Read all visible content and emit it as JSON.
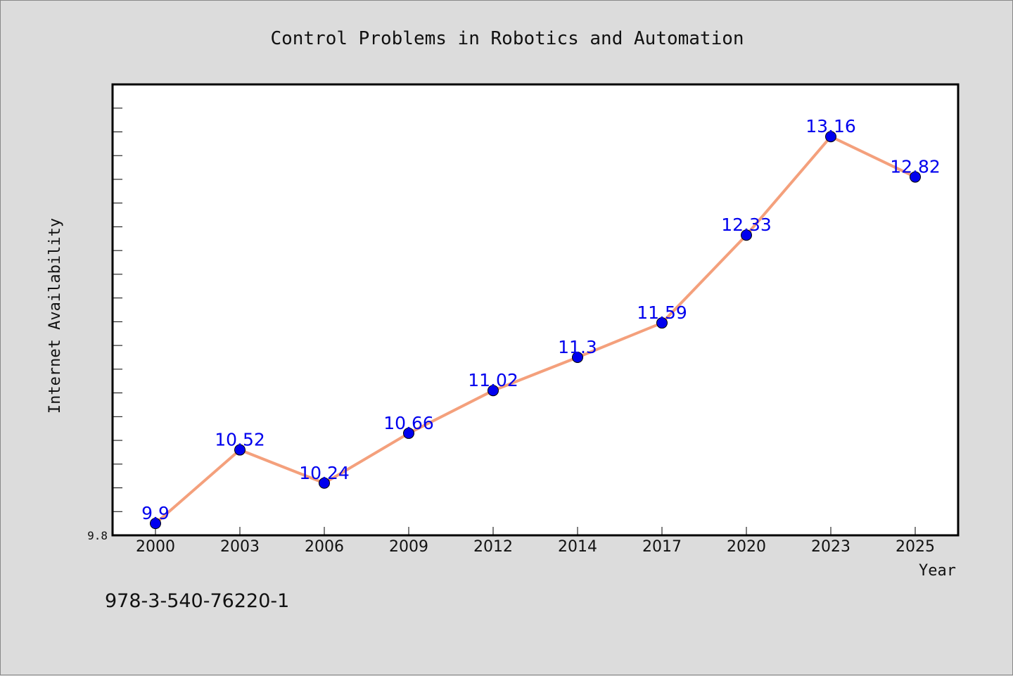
{
  "footer": {
    "code": "978-3-540-76220-1"
  },
  "colors": {
    "line": "#f4a07c",
    "marker": "#0000ee",
    "label": "#0000ee",
    "background": "#dcdcdc",
    "plot_background": "#ffffff"
  },
  "chart_data": {
    "type": "line",
    "title": "Control Problems in Robotics and Automation",
    "xlabel": "Year",
    "ylabel": "Internet Availability",
    "categories": [
      "2000",
      "2003",
      "2006",
      "2009",
      "2012",
      "2014",
      "2017",
      "2020",
      "2023",
      "2025"
    ],
    "values": [
      9.9,
      10.52,
      10.24,
      10.66,
      11.02,
      11.3,
      11.59,
      12.33,
      13.16,
      12.82
    ],
    "data_labels": [
      "9.9",
      "10.52",
      "10.24",
      "10.66",
      "11.02",
      "11.3",
      "11.59",
      "12.33",
      "13.16",
      "12.82"
    ],
    "ylim": [
      9.8,
      13.6
    ],
    "yticks_labeled": [
      "9.8"
    ],
    "grid": false,
    "legend": "none",
    "marker": "circle"
  }
}
